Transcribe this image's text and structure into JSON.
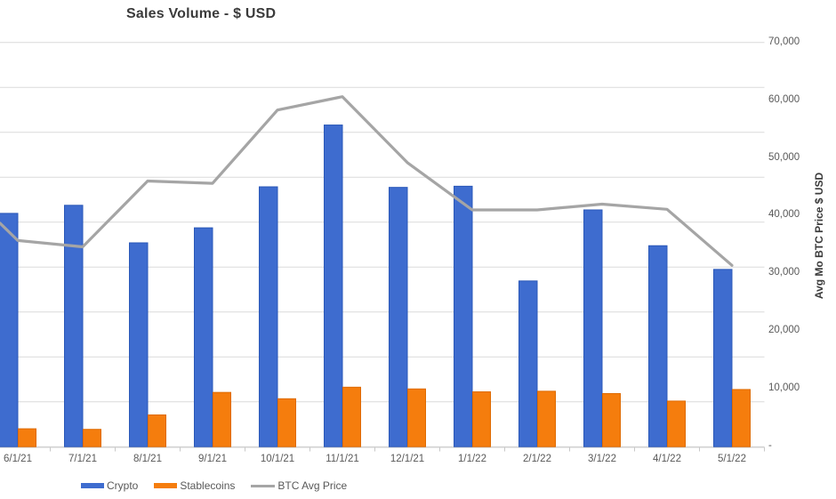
{
  "chart_data": {
    "type": "bar+line combo",
    "title": "Sales Volume - $ USD",
    "categories": [
      "6/1/21",
      "7/1/21",
      "8/1/21",
      "9/1/21",
      "10/1/21",
      "11/1/21",
      "12/1/21",
      "1/1/22",
      "2/1/22",
      "3/1/22",
      "4/1/22",
      "5/1/22"
    ],
    "series": [
      {
        "name": "Crypto",
        "type": "bar",
        "color": "#3e6ccf",
        "border_color": "#2b58b8",
        "values": [
          40400,
          41800,
          35300,
          37900,
          45000,
          55700,
          44900,
          45100,
          28700,
          41000,
          34800,
          30700
        ],
        "values_note": "left (sales volume) axis is cropped out of frame; bar heights estimated against the visible right-axis pixel scale"
      },
      {
        "name": "Stablecoins",
        "type": "bar",
        "color": "#f57d0d",
        "border_color": "#de6a00",
        "values": [
          3100,
          3000,
          5500,
          9400,
          8300,
          10300,
          10000,
          9500,
          9600,
          9200,
          7900,
          9900
        ],
        "values_note": "left (sales volume) axis is cropped out of frame; bar heights estimated against the visible right-axis pixel scale"
      },
      {
        "name": "BTC Avg Price",
        "type": "line",
        "color": "#a5a5a5",
        "values": [
          35700,
          34600,
          46000,
          45600,
          58300,
          60600,
          49200,
          41000,
          41000,
          42000,
          41100,
          31400
        ],
        "left_edge_entry_value": 38700
      }
    ],
    "right_axis": {
      "label": "Avg Mo BTC Price $ USD",
      "tick_labels": [
        "70,000",
        "60,000",
        "50,000",
        "40,000",
        "30,000",
        "20,000",
        "10,000",
        "-"
      ],
      "tick_values": [
        70000,
        60000,
        50000,
        40000,
        30000,
        20000,
        10000,
        0
      ],
      "lim": [
        0,
        70000
      ]
    },
    "left_axis": {
      "visible": false,
      "note": "primary axis labels cropped off the left edge of the screenshot; plot shows 9 unlabeled horizontal gridline intervals"
    },
    "grid": {
      "horizontal_lines": 10,
      "color": "#dadada"
    },
    "legend_position": "bottom-left",
    "legend_entries": [
      "Crypto",
      "Stablecoins",
      "BTC Avg Price"
    ]
  },
  "colors": {
    "bar_crypto": "#3e6ccf",
    "bar_stablecoins": "#f57d0d",
    "btc_line": "#a5a5a5",
    "gridline": "#dadada",
    "axis_line": "#d0d0d0",
    "tick": "#c8c8c8",
    "tick_label_text": "#595959",
    "title_text": "#3b3b3b"
  }
}
